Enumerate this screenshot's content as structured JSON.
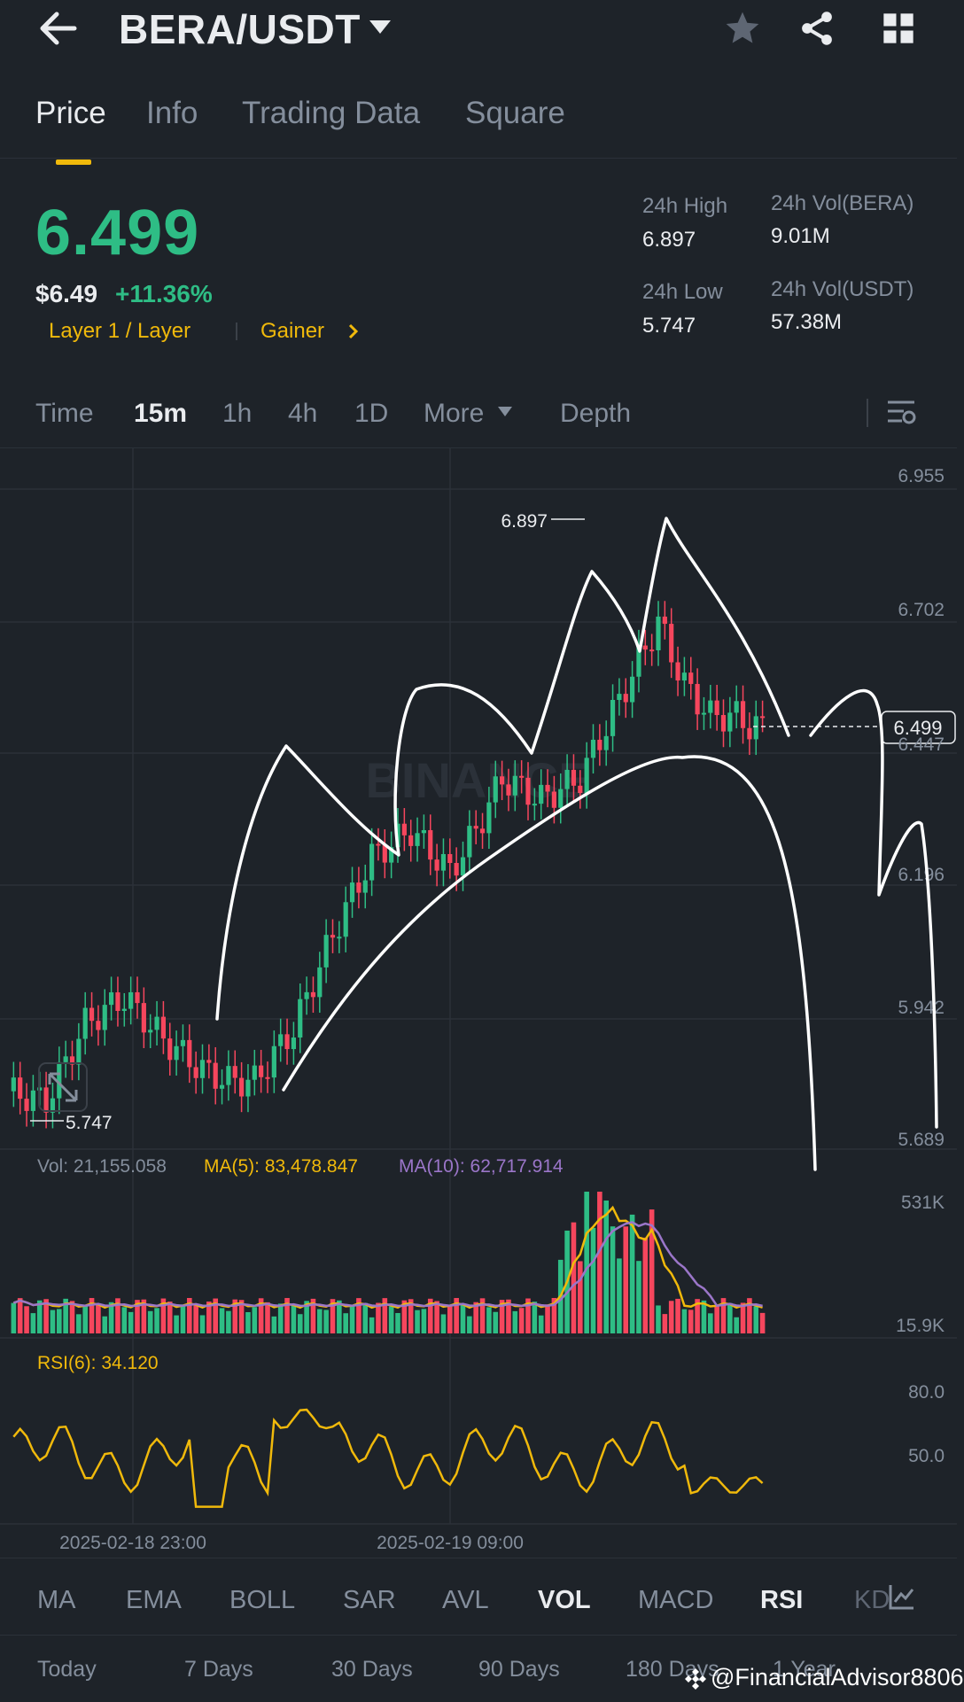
{
  "header": {
    "pair": "BERA/USDT",
    "back_icon": "back-arrow-icon",
    "star_icon": "star-icon",
    "share_icon": "share-icon",
    "grid_icon": "grid-icon"
  },
  "tabs": [
    "Price",
    "Info",
    "Trading Data",
    "Square"
  ],
  "summary": {
    "last_price": "6.499",
    "fiat_price": "$6.49",
    "change": "+11.36%",
    "tag1": "Layer 1 / Layer",
    "tag2": "Gainer",
    "high_label": "24h High",
    "high_value": "6.897",
    "low_label": "24h Low",
    "low_value": "5.747",
    "vol_base_label": "24h Vol(BERA)",
    "vol_base_value": "9.01M",
    "vol_quote_label": "24h Vol(USDT)",
    "vol_quote_value": "57.38M"
  },
  "timeframes": [
    "Time",
    "15m",
    "1h",
    "4h",
    "1D",
    "More",
    "Depth"
  ],
  "chart": {
    "y_labels": [
      "6.955",
      "6.702",
      "6.447",
      "6.196",
      "5.942",
      "5.689"
    ],
    "current_price": "6.499",
    "high_marker": "6.897",
    "low_marker": "5.747",
    "watermark": "BINANCE",
    "vol_label": "Vol: 21,155.058",
    "ma5_label": "MA(5): 83,478.847",
    "ma10_label": "MA(10): 62,717.914",
    "vol_y_labels": [
      "531K",
      "15.9K"
    ],
    "rsi_label": "RSI(6): 34.120",
    "rsi_y_labels": [
      "80.0",
      "50.0"
    ],
    "x_labels": [
      "2025-02-18 23:00",
      "2025-02-19 09:00"
    ]
  },
  "indicators": [
    "MA",
    "EMA",
    "BOLL",
    "SAR",
    "AVL",
    "VOL",
    "MACD",
    "RSI",
    "KD"
  ],
  "periods": [
    "Today",
    "7 Days",
    "30 Days",
    "90 Days",
    "180 Days",
    "1 Year"
  ],
  "watermark_user": "@FinancialAdvisor8806",
  "colors": {
    "up": "#2ebd85",
    "down": "#f6465d",
    "accent": "#f0b90b",
    "ma10": "#9b76c9",
    "bg": "#1e2329"
  }
}
